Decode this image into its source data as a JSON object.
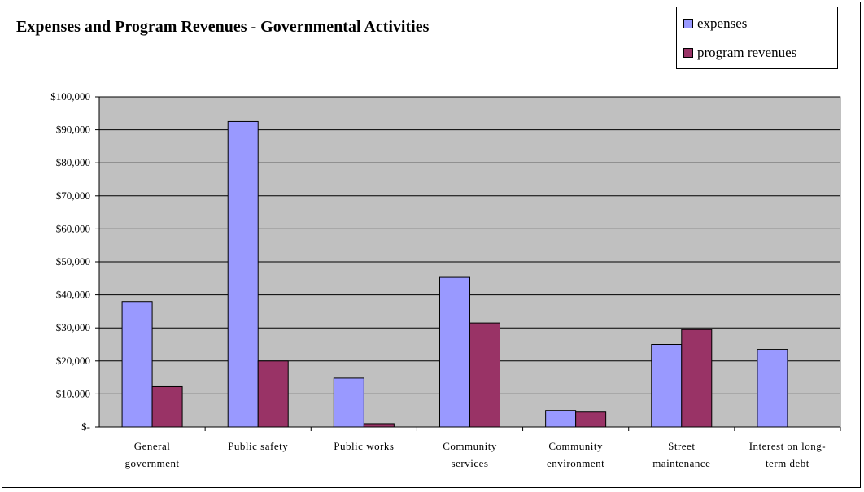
{
  "chart_data": {
    "type": "bar",
    "title": "Expenses and Program Revenues - Governmental Activities",
    "categories": [
      [
        "General",
        "government"
      ],
      [
        "Public safety"
      ],
      [
        "Public works"
      ],
      [
        "Community",
        "services"
      ],
      [
        "Community",
        "environment"
      ],
      [
        "Street",
        "maintenance"
      ],
      [
        "Interest on long-",
        "term debt"
      ]
    ],
    "series": [
      {
        "name": "expenses",
        "color": "#9999ff",
        "values": [
          38000,
          92500,
          14800,
          45300,
          5000,
          25000,
          23500
        ]
      },
      {
        "name": "program revenues",
        "color": "#993366",
        "values": [
          12200,
          20000,
          1000,
          31500,
          4500,
          29500,
          0
        ]
      }
    ],
    "ylim": [
      0,
      100000
    ],
    "yticks": [
      {
        "value": 100000,
        "label": "$100,000"
      },
      {
        "value": 90000,
        "label": "$90,000"
      },
      {
        "value": 80000,
        "label": "$80,000"
      },
      {
        "value": 70000,
        "label": "$70,000"
      },
      {
        "value": 60000,
        "label": "$60,000"
      },
      {
        "value": 50000,
        "label": "$50,000"
      },
      {
        "value": 40000,
        "label": "$40,000"
      },
      {
        "value": 30000,
        "label": "$30,000"
      },
      {
        "value": 20000,
        "label": "$20,000"
      },
      {
        "value": 10000,
        "label": "$10,000"
      },
      {
        "value": 0,
        "label": "$-"
      }
    ],
    "grid": true,
    "plot_background": "#c0c0c0",
    "legend_position": "top-right"
  }
}
